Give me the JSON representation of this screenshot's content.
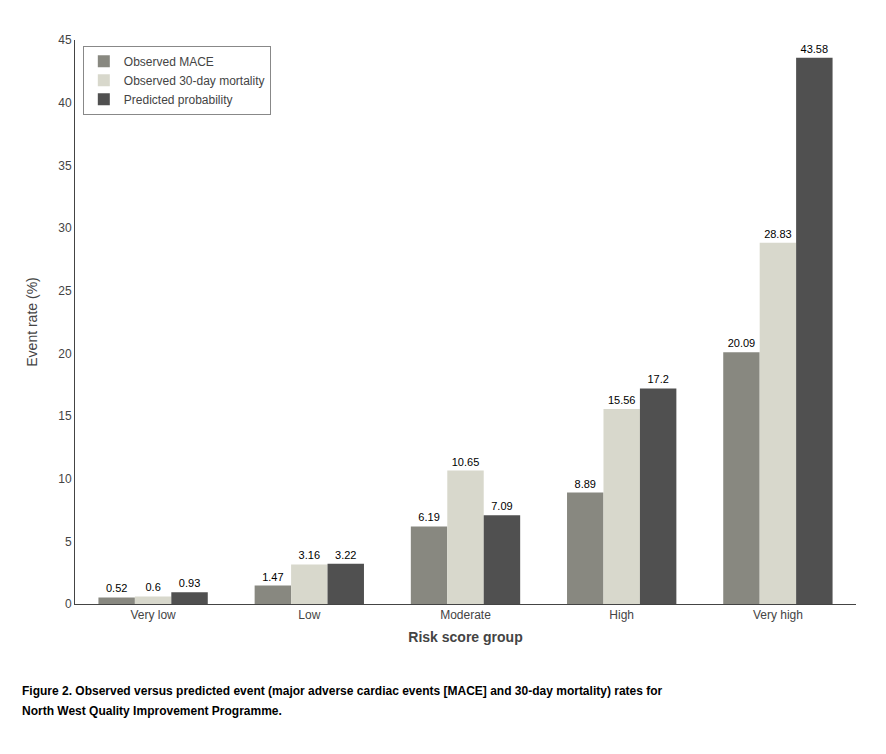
{
  "chart_data": {
    "type": "bar",
    "categories": [
      "Very low",
      "Low",
      "Moderate",
      "High",
      "Very high"
    ],
    "series": [
      {
        "name": "Observed MACE",
        "color": "#888880",
        "values": [
          0.52,
          1.47,
          6.19,
          8.89,
          20.09
        ]
      },
      {
        "name": "Observed 30-day mortality",
        "color": "#d8d8cc",
        "values": [
          0.6,
          3.16,
          10.65,
          15.56,
          28.83
        ]
      },
      {
        "name": "Predicted probability",
        "color": "#505050",
        "values": [
          0.93,
          3.22,
          7.09,
          17.2,
          43.58
        ]
      }
    ],
    "xlabel": "Risk score group",
    "ylabel": "Event rate (%)",
    "annotations": [
      "Figure 2. Observed versus predicted event (major adverse cardiac events [MACE] and 30-day mortality) rates for",
      "North West Quality Improvement Programme."
    ],
    "ylim": [
      0,
      45
    ],
    "yticks": [
      0,
      5,
      10,
      15,
      20,
      25,
      30,
      35,
      40,
      45
    ],
    "grid": false,
    "legend": "upper left",
    "data_labels": true
  }
}
